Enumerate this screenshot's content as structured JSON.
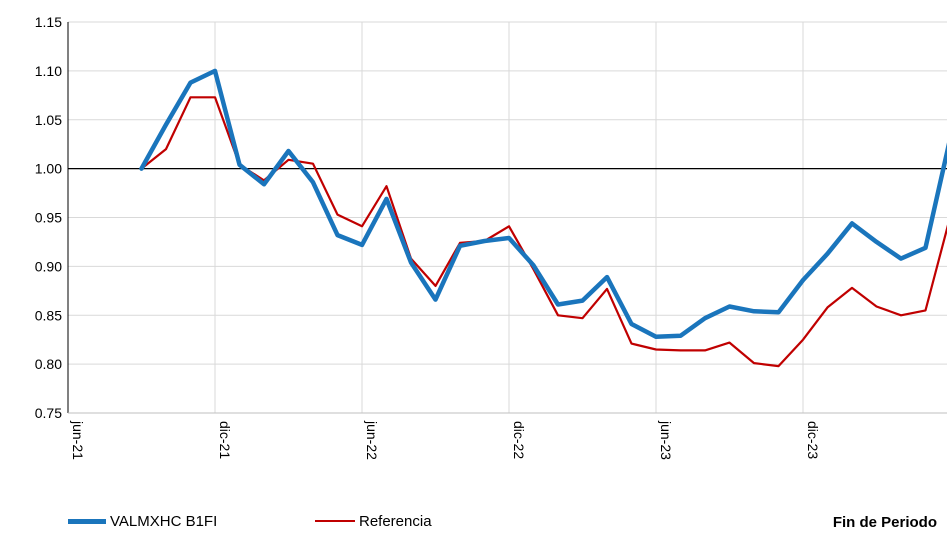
{
  "chart_data": {
    "type": "line",
    "x_ticks": [
      "jun-21",
      "dic-21",
      "jun-22",
      "dic-22",
      "jun-23",
      "dic-23"
    ],
    "y_ticks": [
      "0.75",
      "0.80",
      "0.85",
      "0.90",
      "0.95",
      "1.00",
      "1.05",
      "1.10",
      "1.15"
    ],
    "ylim": [
      0.75,
      1.15
    ],
    "reference_line": 1.0,
    "grid": true,
    "legend_position": "bottom-left",
    "note": "Fin de Periodo",
    "series": [
      {
        "name": "VALMXHC B1FI",
        "color": "#1a75bc",
        "values": [
          1.0,
          1.045,
          1.088,
          1.1,
          1.004,
          0.984,
          1.018,
          0.986,
          0.932,
          0.922,
          0.969,
          0.904,
          0.866,
          0.921,
          0.926,
          0.929,
          0.901,
          0.861,
          0.865,
          0.889,
          0.841,
          0.828,
          0.829,
          0.847,
          0.859,
          0.854,
          0.853,
          0.886,
          0.913,
          0.944,
          0.925,
          0.908,
          0.919,
          1.03
        ]
      },
      {
        "name": "Referencia",
        "color": "#c00000",
        "values": [
          1.0,
          1.02,
          1.073,
          1.073,
          1.004,
          0.988,
          1.009,
          1.005,
          0.953,
          0.941,
          0.982,
          0.908,
          0.88,
          0.924,
          0.926,
          0.941,
          0.897,
          0.85,
          0.847,
          0.877,
          0.821,
          0.815,
          0.814,
          0.814,
          0.822,
          0.801,
          0.798,
          0.825,
          0.858,
          0.878,
          0.859,
          0.85,
          0.855,
          0.95
        ]
      }
    ]
  }
}
